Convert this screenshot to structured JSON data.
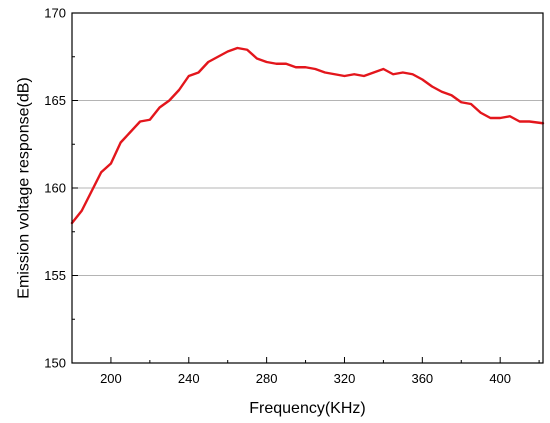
{
  "chart_data": {
    "type": "line",
    "title": "",
    "xlabel": "Frequency(KHz)",
    "ylabel": "Emission voltage response(dB)",
    "xlim": [
      180,
      422
    ],
    "ylim": [
      150,
      170
    ],
    "x_ticks": [
      200,
      240,
      280,
      320,
      360,
      400
    ],
    "y_ticks": [
      150,
      155,
      160,
      165,
      170
    ],
    "grid": "major horizontal gridlines",
    "legend": "none",
    "series": [
      {
        "color": "#e3161c",
        "points": [
          [
            180,
            158.0
          ],
          [
            185,
            158.7
          ],
          [
            190,
            159.8
          ],
          [
            195,
            160.9
          ],
          [
            200,
            161.4
          ],
          [
            205,
            162.6
          ],
          [
            210,
            163.2
          ],
          [
            215,
            163.8
          ],
          [
            220,
            163.9
          ],
          [
            225,
            164.6
          ],
          [
            230,
            165.0
          ],
          [
            235,
            165.6
          ],
          [
            240,
            166.4
          ],
          [
            245,
            166.6
          ],
          [
            250,
            167.2
          ],
          [
            255,
            167.5
          ],
          [
            260,
            167.8
          ],
          [
            265,
            168.0
          ],
          [
            270,
            167.9
          ],
          [
            275,
            167.4
          ],
          [
            280,
            167.2
          ],
          [
            285,
            167.1
          ],
          [
            290,
            167.1
          ],
          [
            295,
            166.9
          ],
          [
            300,
            166.9
          ],
          [
            305,
            166.8
          ],
          [
            310,
            166.6
          ],
          [
            315,
            166.5
          ],
          [
            320,
            166.4
          ],
          [
            325,
            166.5
          ],
          [
            330,
            166.4
          ],
          [
            335,
            166.6
          ],
          [
            340,
            166.8
          ],
          [
            345,
            166.5
          ],
          [
            350,
            166.6
          ],
          [
            355,
            166.5
          ],
          [
            360,
            166.2
          ],
          [
            365,
            165.8
          ],
          [
            370,
            165.5
          ],
          [
            375,
            165.3
          ],
          [
            380,
            164.9
          ],
          [
            385,
            164.8
          ],
          [
            390,
            164.3
          ],
          [
            395,
            164.0
          ],
          [
            400,
            164.0
          ],
          [
            405,
            164.1
          ],
          [
            410,
            163.8
          ],
          [
            415,
            163.8
          ],
          [
            422,
            163.7
          ]
        ]
      }
    ]
  }
}
